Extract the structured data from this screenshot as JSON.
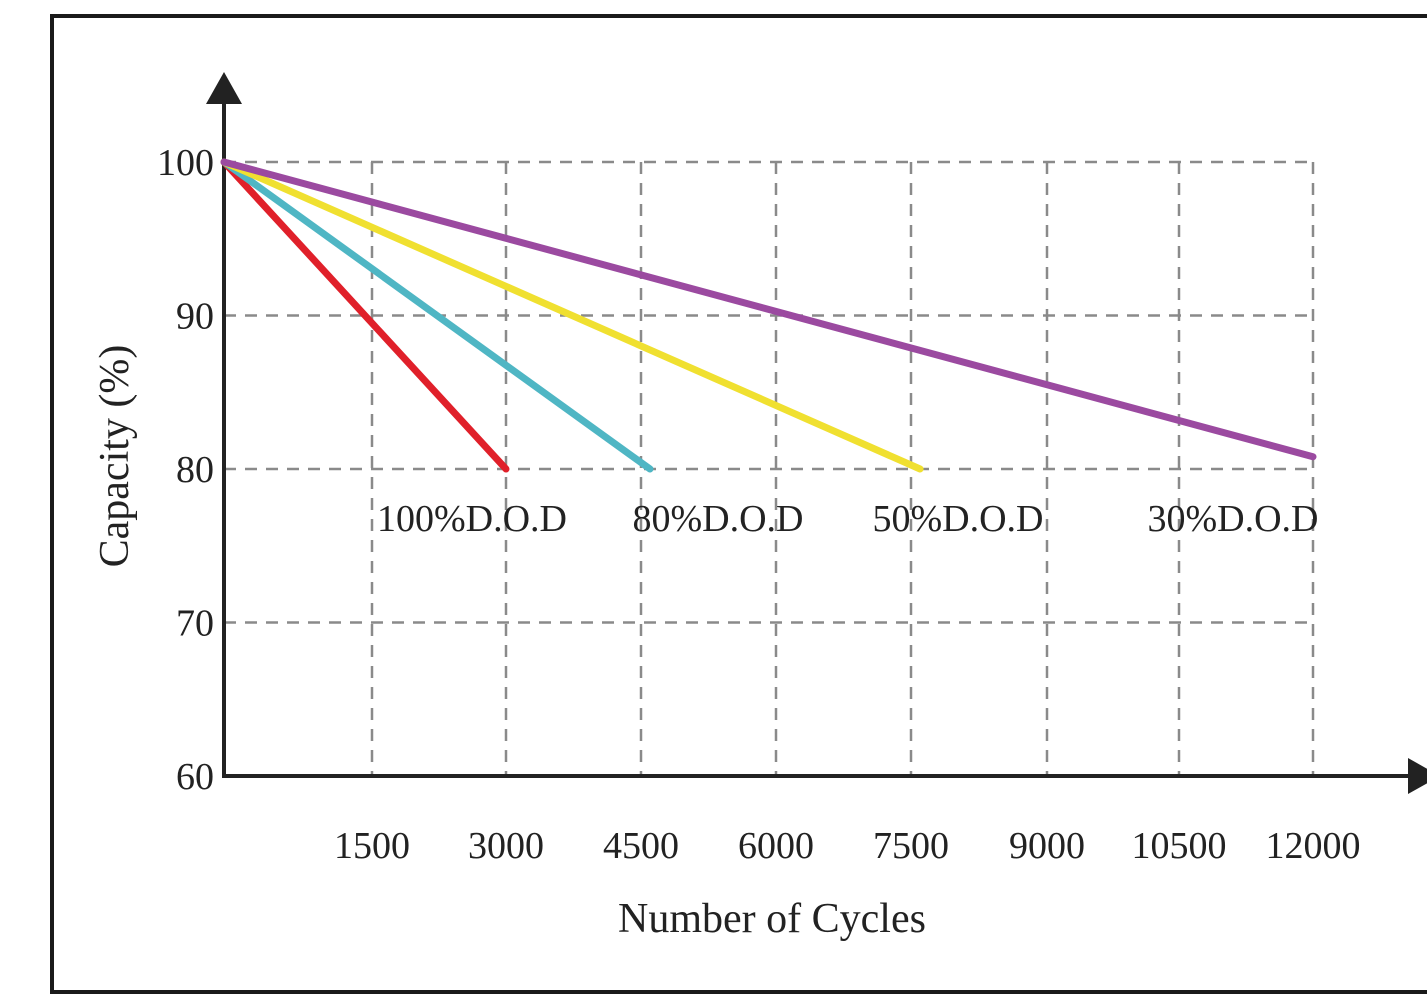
{
  "chart_data": {
    "type": "line",
    "xlabel": "Number of Cycles",
    "ylabel": "Capacity (%)",
    "x_ticks": [
      1500,
      3000,
      4500,
      6000,
      7500,
      9000,
      10500,
      12000
    ],
    "y_ticks": [
      100,
      90,
      80,
      70,
      60
    ],
    "xlim": [
      0,
      12000
    ],
    "ylim": [
      60,
      100
    ],
    "grid": true,
    "series": [
      {
        "name": "100%D.O.D",
        "color": "#e0202a",
        "x": [
          0,
          3000
        ],
        "y": [
          100,
          80
        ]
      },
      {
        "name": "80%D.O.D",
        "color": "#4fb6c4",
        "x": [
          0,
          4600
        ],
        "y": [
          100,
          80
        ]
      },
      {
        "name": "50%D.O.D",
        "color": "#f0e030",
        "x": [
          0,
          7600
        ],
        "y": [
          100,
          80
        ]
      },
      {
        "name": "30%D.O.D",
        "color": "#9b4aa0",
        "x": [
          0,
          12000
        ],
        "y": [
          100,
          80.8
        ]
      }
    ]
  }
}
